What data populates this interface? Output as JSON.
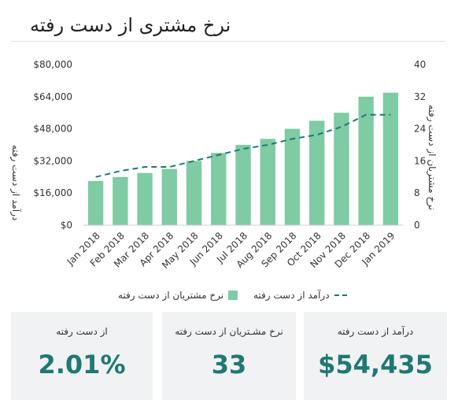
{
  "header": {
    "title": "نرخ مشتری از دست رفته"
  },
  "chart_data": {
    "type": "bar",
    "categories": [
      "Jan 2018",
      "Feb 2018",
      "Mar 2018",
      "Apr 2018",
      "May 2018",
      "Jun 2018",
      "Jul 2018",
      "Aug 2018",
      "Sep 2018",
      "Oct 2018",
      "Nov 2018",
      "Dec 2018",
      "Jan 2019"
    ],
    "series": [
      {
        "name": "نرخ مشتریان از دست رفته",
        "type": "bar",
        "axis": "left",
        "values": [
          22000,
          24000,
          26000,
          28000,
          32000,
          36000,
          40000,
          43000,
          48000,
          52000,
          56000,
          64000,
          66000
        ]
      },
      {
        "name": "درآمد از دست رفته",
        "type": "line",
        "axis": "right",
        "style": "dashed",
        "values": [
          12,
          13.5,
          14.5,
          14.5,
          16,
          17.5,
          19,
          20,
          21.5,
          22.5,
          24.5,
          27.5,
          27.5
        ]
      }
    ],
    "left_axis": {
      "label": "درآمد از دست رفته",
      "ticks": [
        "$0",
        "$16,000",
        "$32,000",
        "$48,000",
        "$64,000",
        "$80,000"
      ],
      "range": [
        0,
        80000
      ]
    },
    "right_axis": {
      "label": "نرخ مشتریان از دست رفته",
      "ticks": [
        "0",
        "8",
        "16",
        "24",
        "32",
        "40"
      ],
      "range": [
        0,
        40
      ]
    },
    "grid": false,
    "legend_position": "bottom",
    "colors": {
      "bar": "#7ecba4",
      "line": "#1f7873"
    }
  },
  "legend": {
    "bar_label": "نرخ مشتریان از دست رفته",
    "line_label": "درآمد از دست رفته"
  },
  "cards": [
    {
      "label": "از دست رفته",
      "value": "2.01%"
    },
    {
      "label": "نرخ مشـتریان از دست رفته",
      "value": "33"
    },
    {
      "label": "درآمد از دست رفته",
      "value": "$54,435"
    }
  ]
}
